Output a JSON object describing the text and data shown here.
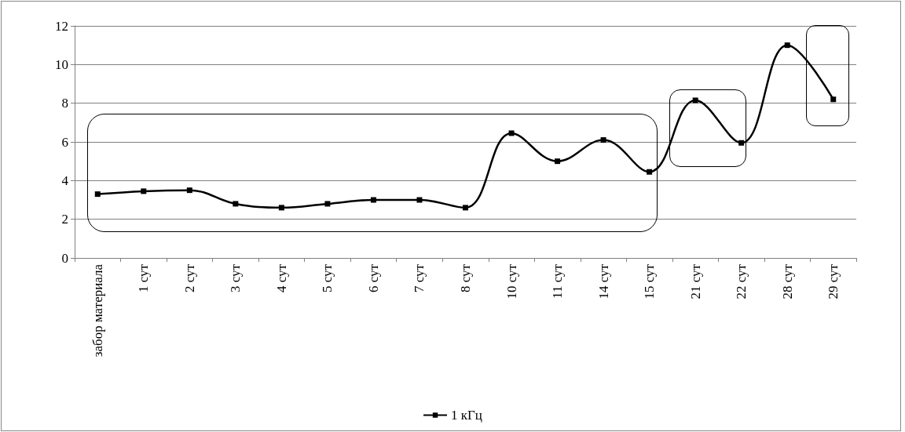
{
  "chart_data": {
    "type": "line",
    "categories": [
      "забор материала",
      "1 сут",
      "2 сут",
      "3 сут",
      "4 сут",
      "5 сут",
      "6 сут",
      "7 сут",
      "8 сут",
      "10 сут",
      "11 сут",
      "14 сут",
      "15 сут",
      "21 сут",
      "22 сут",
      "28 сут",
      "29 сут"
    ],
    "series": [
      {
        "name": "1 кГц",
        "color": "#000000",
        "values": [
          3.3,
          3.45,
          3.5,
          2.8,
          2.6,
          2.8,
          3.0,
          3.0,
          2.6,
          6.45,
          5.0,
          6.1,
          4.45,
          8.15,
          5.95,
          11.0,
          8.2
        ]
      }
    ],
    "ylim": [
      0,
      12
    ],
    "yticks": [
      0,
      2,
      4,
      6,
      8,
      10,
      12
    ],
    "grid": "y",
    "legend": "bottom",
    "marker": "square",
    "line_style": "solid"
  }
}
